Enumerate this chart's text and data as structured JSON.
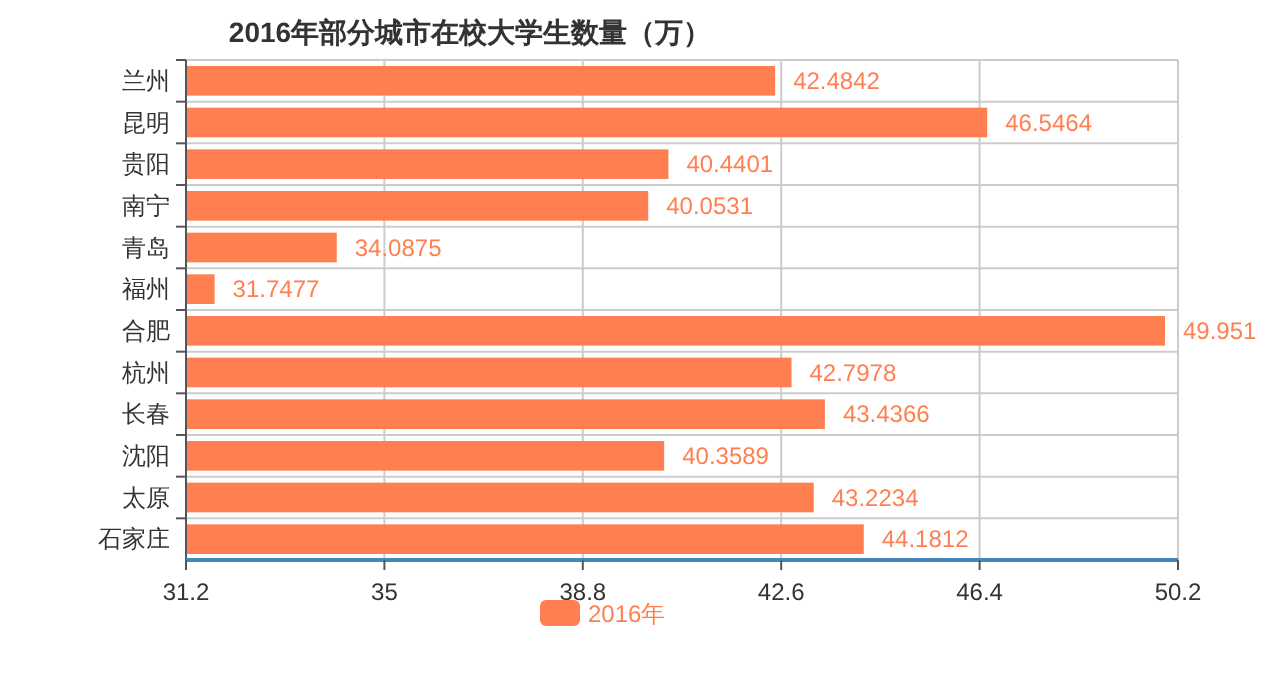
{
  "chart_data": {
    "type": "bar",
    "orientation": "horizontal",
    "title": "2016年部分城市在校大学生数量（万）",
    "categories": [
      "兰州",
      "昆明",
      "贵阳",
      "南宁",
      "青岛",
      "福州",
      "合肥",
      "杭州",
      "长春",
      "沈阳",
      "太原",
      "石家庄"
    ],
    "series": [
      {
        "name": "2016年",
        "color": "#ff7f50",
        "values": [
          42.4842,
          46.5464,
          40.4401,
          40.0531,
          34.0875,
          31.7477,
          49.951,
          42.7978,
          43.4366,
          40.3589,
          43.2234,
          44.1812
        ]
      }
    ],
    "xlim": [
      31.2,
      50.2
    ],
    "xticks": [
      31.2,
      35,
      38.8,
      42.6,
      46.4,
      50.2
    ],
    "grid": true,
    "legend": "bottom",
    "data_labels": true
  }
}
